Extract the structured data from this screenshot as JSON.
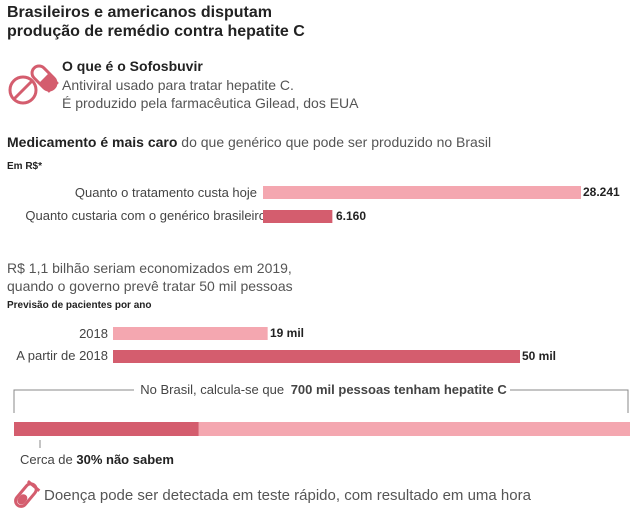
{
  "header": {
    "title_line1": "Brasileiros e americanos disputam",
    "title_line2": "produção de remédio contra hepatite C"
  },
  "drug": {
    "name": "O que é o Sofosbuvir",
    "line1": "Antiviral usado para tratar hepatite C.",
    "line2": "É produzido pela farmacêutica Gilead, dos EUA",
    "icon": "pill-icon"
  },
  "price_section": {
    "heading_bold": "Medicamento é mais caro",
    "heading_rest": " do que genérico que pode ser produzido no Brasil"
  },
  "savings_note": {
    "line1": "R$ 1,1 bilhão seriam economizados em 2019,",
    "line2": "quando o governo prevê tratar 50 mil pessoas"
  },
  "prevalence": {
    "label_before": "No Brasil, calcula-se que ",
    "label_bold": "700 mil pessoas tenham hepatite C",
    "unaware_before": "Cerca de ",
    "unaware_bold": "30% não sabem"
  },
  "footer": {
    "text": "Doença pode ser detectada em teste rápido, com resultado em uma hora",
    "icon": "test-tube-icon"
  },
  "colors": {
    "light": "#f4a7b0",
    "dark": "#d45d6e",
    "text": "#333333"
  },
  "chart_data": [
    {
      "type": "bar",
      "orientation": "horizontal",
      "ylabel": "Em R$*",
      "categories": [
        "Quanto o tratamento custa hoje",
        "Quanto custaria com o genérico brasileiro"
      ],
      "values": [
        28241,
        6160
      ],
      "value_labels": [
        "28.241",
        "6.160"
      ],
      "xlim": [
        0,
        28241
      ]
    },
    {
      "type": "bar",
      "orientation": "horizontal",
      "title": "Previsão de pacientes por ano",
      "categories": [
        "2018",
        "A partir de 2018"
      ],
      "values": [
        19,
        50
      ],
      "value_labels": [
        "19 mil",
        "50 mil"
      ],
      "xlim": [
        0,
        50
      ]
    },
    {
      "type": "bar",
      "orientation": "stacked-horizontal",
      "total": 700000,
      "segments": [
        {
          "label": "30% não sabem",
          "share": 0.3
        },
        {
          "label": "",
          "share": 0.7
        }
      ]
    }
  ]
}
